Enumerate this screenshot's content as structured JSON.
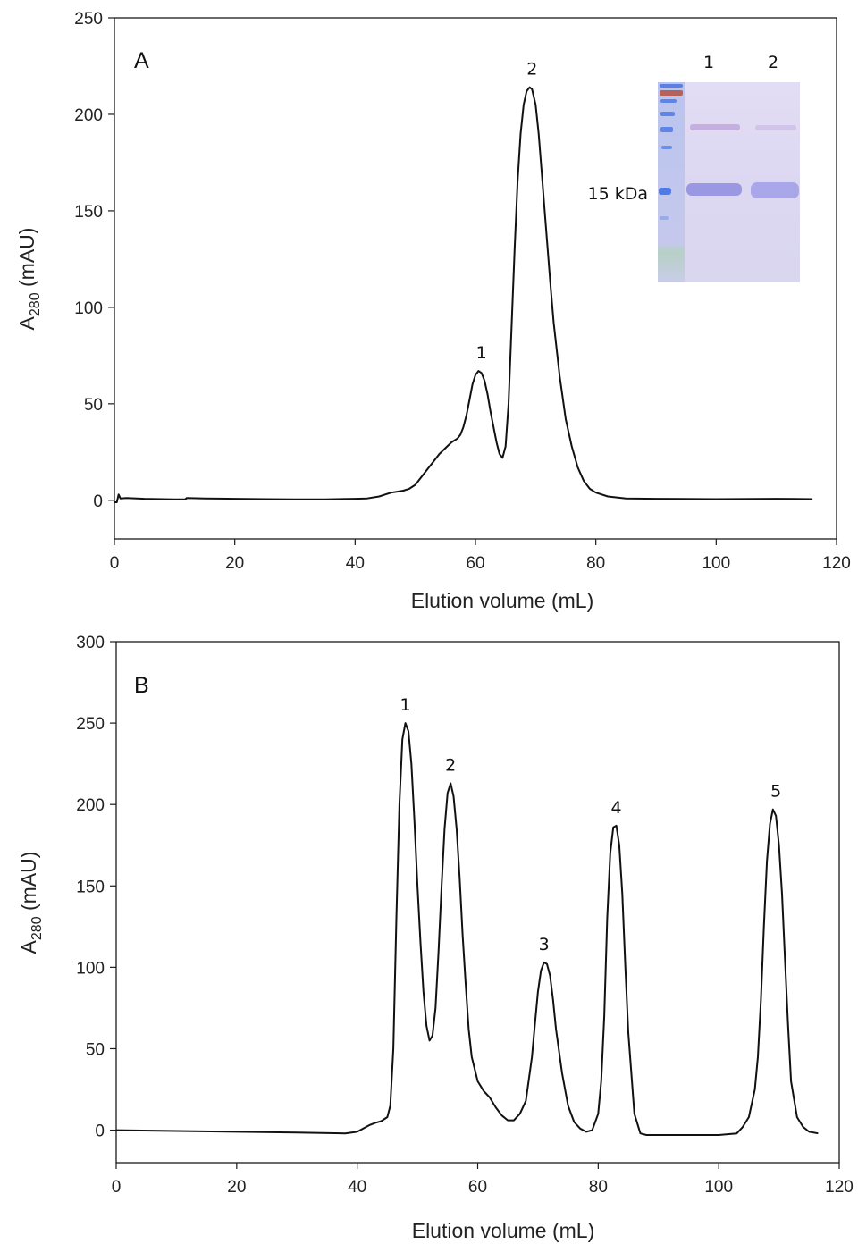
{
  "chart_data": [
    {
      "type": "line",
      "panel_label": "A",
      "xlabel": "Elution volume (mL)",
      "ylabel_main": "A",
      "ylabel_sub": "280",
      "ylabel_rest": " (mAU)",
      "xlim": [
        0,
        120
      ],
      "ylim": [
        -20,
        250
      ],
      "x_ticks": [
        0,
        20,
        40,
        60,
        80,
        100,
        120
      ],
      "y_ticks": [
        0,
        50,
        100,
        150,
        200,
        250
      ],
      "grid": false,
      "series": [
        {
          "x": [
            0,
            0.4,
            0.7,
            1,
            2,
            5,
            10,
            11.8,
            12,
            15,
            20,
            25,
            30,
            35,
            40,
            42,
            44,
            45,
            46,
            47,
            48,
            49,
            50,
            51,
            52,
            53,
            54,
            55,
            56,
            57,
            57.5,
            58,
            58.5,
            59,
            59.5,
            60,
            60.5,
            61,
            61.5,
            62,
            62.5,
            63,
            63.5,
            64,
            64.5,
            65,
            65.5,
            66,
            66.5,
            67,
            67.5,
            68,
            68.5,
            69,
            69.4,
            70,
            70.5,
            71,
            71.5,
            72,
            72.5,
            73,
            74,
            75,
            76,
            77,
            78,
            79,
            80,
            82,
            85,
            90,
            100,
            110,
            116
          ],
          "y": [
            -1,
            -1,
            3,
            1,
            1.2,
            0.8,
            0.5,
            0.5,
            1.2,
            1,
            0.8,
            0.6,
            0.5,
            0.5,
            0.8,
            1,
            2,
            3,
            4,
            4.5,
            5,
            6,
            8,
            12,
            16,
            20,
            24,
            27,
            30,
            32,
            34,
            38,
            44,
            52,
            60,
            65,
            67,
            66,
            62,
            55,
            46,
            38,
            30,
            24,
            22,
            28,
            50,
            90,
            130,
            165,
            190,
            205,
            212,
            214,
            213,
            205,
            190,
            170,
            150,
            130,
            110,
            92,
            64,
            42,
            28,
            17,
            10,
            6,
            4,
            2,
            1,
            0.8,
            0.6,
            0.8,
            0.6
          ]
        }
      ],
      "annotations": [
        {
          "text": "1",
          "x": 61,
          "y": 67
        },
        {
          "text": "2",
          "x": 69.4,
          "y": 214
        }
      ],
      "inset": {
        "lane_labels": [
          "1",
          "2"
        ],
        "marker_label": "15 kDa"
      }
    },
    {
      "type": "line",
      "panel_label": "B",
      "xlabel": "Elution volume (mL)",
      "ylabel_main": "A",
      "ylabel_sub": "280",
      "ylabel_rest": " (mAU)",
      "xlim": [
        0,
        120
      ],
      "ylim": [
        -20,
        300
      ],
      "x_ticks": [
        0,
        20,
        40,
        60,
        80,
        100,
        120
      ],
      "y_ticks": [
        0,
        50,
        100,
        150,
        200,
        250,
        300
      ],
      "grid": false,
      "series": [
        {
          "x": [
            0,
            10,
            20,
            30,
            38,
            40,
            41,
            42,
            43,
            44,
            45,
            45.5,
            46,
            46.5,
            47,
            47.5,
            48,
            48.5,
            49,
            49.5,
            50,
            50.5,
            51,
            51.5,
            52,
            52.5,
            53,
            53.5,
            54,
            54.5,
            55,
            55.5,
            56,
            56.5,
            57,
            57.5,
            58,
            58.5,
            59,
            60,
            61,
            62,
            63,
            64,
            65,
            66,
            67,
            68,
            69,
            69.5,
            70,
            70.5,
            71,
            71.5,
            72,
            72.5,
            73,
            74,
            75,
            76,
            77,
            78,
            79,
            80,
            80.5,
            81,
            81.5,
            82,
            82.5,
            83,
            83.5,
            84,
            84.5,
            85,
            86,
            87,
            88,
            90,
            95,
            100,
            103,
            104,
            105,
            106,
            106.5,
            107,
            107.5,
            108,
            108.5,
            109,
            109.5,
            110,
            110.5,
            111,
            111.5,
            112,
            113,
            114,
            115,
            116.5
          ],
          "y": [
            0,
            -0.5,
            -1,
            -1.5,
            -2,
            -1,
            1,
            3,
            4.5,
            5.5,
            8,
            15,
            50,
            130,
            200,
            240,
            250,
            245,
            225,
            190,
            150,
            115,
            85,
            64,
            55,
            58,
            75,
            110,
            150,
            185,
            207,
            213,
            205,
            185,
            155,
            120,
            90,
            62,
            45,
            30,
            24,
            20,
            14,
            9,
            6,
            6,
            10,
            18,
            45,
            65,
            85,
            98,
            103,
            102,
            95,
            80,
            62,
            35,
            15,
            5,
            1,
            -1,
            0,
            10,
            30,
            70,
            130,
            170,
            186,
            187,
            175,
            145,
            100,
            60,
            10,
            -2,
            -3,
            -3,
            -3,
            -3,
            -2,
            2,
            8,
            25,
            45,
            80,
            125,
            165,
            188,
            197,
            193,
            175,
            145,
            105,
            65,
            30,
            8,
            2,
            -1,
            -2
          ]
        }
      ],
      "annotations": [
        {
          "text": "1",
          "x": 48,
          "y": 250
        },
        {
          "text": "2",
          "x": 55.5,
          "y": 213
        },
        {
          "text": "3",
          "x": 71,
          "y": 103
        },
        {
          "text": "4",
          "x": 83,
          "y": 187
        },
        {
          "text": "5",
          "x": 109.5,
          "y": 197
        }
      ]
    }
  ]
}
